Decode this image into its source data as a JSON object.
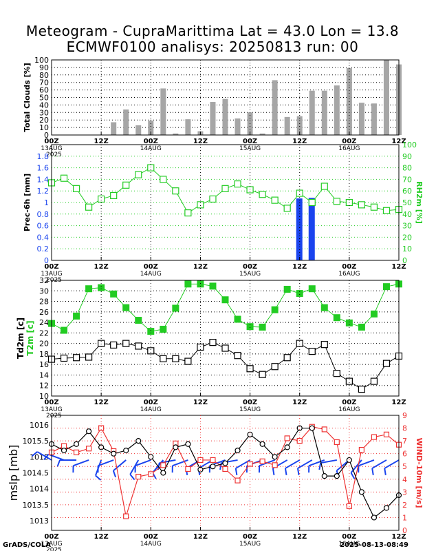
{
  "title": {
    "line1": "Meteogram - CupraMarittima Lat = 43.0 Lon = 13.8",
    "line2": "ECMWF0100 analisys: 20250813 run: 00"
  },
  "footer": {
    "left": "GrADS/COLA",
    "right": "2025-08-13-08:49"
  },
  "x_axis": {
    "tick_labels": [
      "00Z",
      "12Z",
      "00Z",
      "12Z",
      "00Z",
      "12Z",
      "00Z",
      "12Z"
    ],
    "date_labels": [
      "13AUG",
      "14AUG",
      "15AUG",
      "16AUG"
    ],
    "year_label": "2025"
  },
  "colors": {
    "green": "#22cc22",
    "blue": "#1a44ee",
    "red": "#ee3333",
    "gray": "#a6a6a6",
    "black": "#000000"
  },
  "chart_data": [
    {
      "type": "bar",
      "ylabel": "Total Clouds [%]",
      "ylim": [
        0,
        100
      ],
      "yticks": [
        0,
        10,
        20,
        30,
        40,
        50,
        60,
        70,
        80,
        90,
        100
      ],
      "x_hours": [
        3,
        6,
        9,
        12,
        15,
        18,
        21,
        24,
        27,
        30,
        33,
        36,
        39,
        42,
        45,
        48,
        51,
        54,
        57,
        60,
        63,
        66,
        69,
        72,
        75,
        78,
        81,
        84
      ],
      "values": [
        0,
        0,
        0,
        0,
        17,
        34,
        13,
        19,
        62,
        2,
        21,
        5,
        44,
        48,
        22,
        30,
        2,
        73,
        24,
        25,
        59,
        59,
        66,
        89,
        43,
        42,
        100,
        94
      ],
      "grid": true
    },
    {
      "type": "line",
      "ylabel": "Prec-6h [mm]",
      "ylim": [
        0,
        2
      ],
      "yticks": [
        "0",
        "0.2",
        "0.4",
        "0.6",
        "0.8",
        "1",
        "1.2",
        "1.4",
        "1.6",
        "1.8"
      ],
      "series": [
        {
          "name": "RH2m [%]",
          "axis": "right",
          "marker": "open-square",
          "x_hours": [
            0,
            3,
            6,
            9,
            12,
            15,
            18,
            21,
            24,
            27,
            30,
            33,
            36,
            39,
            42,
            45,
            48,
            51,
            54,
            57,
            60,
            63,
            66,
            69,
            72,
            75,
            78,
            81,
            84
          ],
          "values": [
            67,
            71,
            62,
            46,
            53,
            56,
            65,
            74,
            80,
            70,
            60,
            41,
            48,
            53,
            62,
            66,
            61,
            57,
            52,
            45,
            58,
            50,
            64,
            51,
            50,
            48,
            46,
            43,
            44
          ]
        }
      ],
      "bars": {
        "name": "Prec-6h",
        "x_hours": [
          60,
          63
        ],
        "values": [
          1.07,
          1.08
        ]
      },
      "right_axis": {
        "label": "RH2m [%]",
        "ylim": [
          0,
          100
        ],
        "yticks": [
          "0",
          "10",
          "20",
          "30",
          "40",
          "50",
          "60",
          "70",
          "80",
          "90",
          "100"
        ]
      },
      "grid": true
    },
    {
      "type": "line",
      "ylabel_black": "Td2m [c]",
      "ylabel_green": "T2m [c]",
      "ylim": [
        10,
        32
      ],
      "yticks": [
        "10",
        "12",
        "14",
        "16",
        "18",
        "20",
        "22",
        "24",
        "26",
        "28",
        "30",
        "32"
      ],
      "series": [
        {
          "name": "T2m",
          "marker": "filled-square",
          "x_hours": [
            0,
            3,
            6,
            9,
            12,
            15,
            18,
            21,
            24,
            27,
            30,
            33,
            36,
            39,
            42,
            45,
            48,
            51,
            54,
            57,
            60,
            63,
            66,
            69,
            72,
            75,
            78,
            81,
            84
          ],
          "values": [
            23.8,
            22.5,
            25.2,
            30.4,
            30.6,
            29.4,
            26.8,
            24.4,
            22.3,
            22.7,
            26.7,
            31.3,
            31.3,
            30.9,
            28.3,
            24.6,
            23.2,
            23.1,
            26.4,
            30.3,
            29.5,
            30.4,
            26.8,
            24.9,
            23.9,
            23.1,
            25.6,
            30.8,
            31.3
          ]
        },
        {
          "name": "Td2m",
          "marker": "open-square",
          "x_hours": [
            0,
            3,
            6,
            9,
            12,
            15,
            18,
            21,
            24,
            27,
            30,
            33,
            36,
            39,
            42,
            45,
            48,
            51,
            54,
            57,
            60,
            63,
            66,
            69,
            72,
            75,
            78,
            81,
            84
          ],
          "values": [
            17,
            17.2,
            17.3,
            17.4,
            20.0,
            19.7,
            20.0,
            19.5,
            18.6,
            17.1,
            17.1,
            16.6,
            19.3,
            20.2,
            19.1,
            17.7,
            15.2,
            14.1,
            15.6,
            17.3,
            20.0,
            18.5,
            19.8,
            14.3,
            12.8,
            11.3,
            12.8,
            16.2,
            17.6
          ]
        }
      ],
      "grid": true
    },
    {
      "type": "line",
      "ylabel": "mslp [mb]",
      "ylim": [
        1012.7,
        1016.3
      ],
      "yticks": [
        "1013",
        "1013.5",
        "1014",
        "1014.5",
        "1015",
        "1015.5",
        "1016"
      ],
      "series": [
        {
          "name": "mslp",
          "marker": "open-circle",
          "x_hours": [
            0,
            3,
            6,
            9,
            12,
            15,
            18,
            21,
            24,
            27,
            30,
            33,
            36,
            39,
            42,
            45,
            48,
            51,
            54,
            57,
            60,
            63,
            66,
            69,
            72,
            75,
            78,
            81,
            84
          ],
          "values": [
            1015.4,
            1015.2,
            1015.4,
            1015.8,
            1015.3,
            1015.1,
            1015.2,
            1015.5,
            1015.0,
            1014.5,
            1015.3,
            1015.4,
            1014.6,
            1014.7,
            1014.8,
            1015.2,
            1015.7,
            1015.4,
            1015.0,
            1015.3,
            1015.9,
            1015.9,
            1014.4,
            1014.4,
            1014.9,
            1013.9,
            1013.1,
            1013.4,
            1013.8
          ]
        },
        {
          "name": "WIND-10m [m/s]",
          "axis": "right",
          "marker": "open-square",
          "x_hours": [
            0,
            3,
            6,
            9,
            12,
            15,
            18,
            21,
            24,
            27,
            30,
            33,
            36,
            39,
            42,
            45,
            48,
            51,
            54,
            57,
            60,
            63,
            66,
            69,
            72,
            75,
            78,
            81,
            84
          ],
          "values": [
            6.1,
            6.6,
            6.1,
            6.4,
            8.0,
            6.2,
            1.1,
            4.2,
            4.4,
            5.1,
            6.8,
            4.8,
            5.5,
            5.5,
            4.8,
            3.9,
            5.2,
            5.4,
            5.1,
            7.2,
            7.0,
            8.1,
            7.9,
            6.9,
            1.9,
            6.3,
            7.3,
            7.5,
            6.7
          ]
        }
      ],
      "right_axis": {
        "label": "WIND-10m [m/s]",
        "ylim": [
          0,
          9
        ],
        "yticks": [
          "0",
          "1",
          "2",
          "3",
          "4",
          "5",
          "6",
          "7",
          "8",
          "9"
        ]
      },
      "wind_barbs": {
        "x_hours": [
          0,
          3,
          6,
          9,
          12,
          15,
          18,
          21,
          24,
          27,
          30,
          33,
          36,
          39,
          42,
          45,
          48,
          51,
          54,
          57,
          60,
          63,
          66,
          69,
          72,
          75,
          78,
          81,
          84
        ],
        "direction_deg": [
          300,
          290,
          270,
          250,
          200,
          250,
          230,
          210,
          250,
          220,
          260,
          250,
          240,
          240,
          250,
          260,
          240,
          250,
          250,
          240,
          240,
          240,
          250,
          260,
          230,
          220,
          250,
          240,
          240
        ]
      },
      "grid": true
    }
  ]
}
